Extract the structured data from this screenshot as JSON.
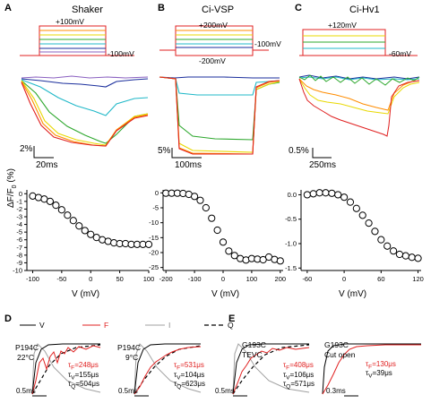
{
  "panels": {
    "A": {
      "letter": "A",
      "title": "Shaker",
      "hold_label": "+100mV",
      "rest_label": "-100mV",
      "scale_y": "2%",
      "scale_x": "20ms",
      "x_label": "V (mV)",
      "y_label": "ΔF/F",
      "x_ticks": [
        "-100",
        "-50",
        "0",
        "50",
        "100"
      ],
      "y_ticks": [
        "0",
        "-1",
        "-2",
        "-3",
        "-4",
        "-5",
        "-6",
        "-7",
        "-8",
        "-9",
        "-10"
      ]
    },
    "B": {
      "letter": "B",
      "title": "Ci-VSP",
      "hold_label": "+200mV",
      "rest_label": "-100mV",
      "low_label": "-200mV",
      "scale_y": "5%",
      "scale_x": "100ms",
      "x_label": "V (mV)",
      "x_ticks": [
        "-200",
        "-100",
        "0",
        "100",
        "200"
      ],
      "y_ticks": [
        "0",
        "-5",
        "-10",
        "-15",
        "-20",
        "-25"
      ]
    },
    "C": {
      "letter": "C",
      "title": "Ci-Hv1",
      "hold_label": "+120mV",
      "rest_label": "-60mV",
      "scale_y": "0.5%",
      "scale_x": "250ms",
      "x_label": "V (mV)",
      "x_ticks": [
        "-60",
        "0",
        "60",
        "120"
      ],
      "y_ticks": [
        "0.0",
        "-0.5",
        "-1.0",
        "-1.5"
      ]
    },
    "D": {
      "letter": "D",
      "legend": {
        "V": "V",
        "F": "F",
        "I": "I",
        "Q": "Q"
      },
      "left": {
        "mutant": "P194C",
        "temp": "22°C",
        "scale": "0.5ms",
        "tau1": "τ",
        "tau1_sub": "F",
        "tau1_val": "=248μs",
        "tau2": "τ",
        "tau2_sub": "V",
        "tau2_val": "=155μs",
        "tau3": "τ",
        "tau3_sub": "Q",
        "tau3_val": "=504μs"
      },
      "right": {
        "mutant": "P194C",
        "temp": "9°C",
        "scale": "0.5ms",
        "tau1": "τ",
        "tau1_sub": "F",
        "tau1_val": "=531μs",
        "tau2": "τ",
        "tau2_sub": "V",
        "tau2_val": "=104μs",
        "tau3": "τ",
        "tau3_sub": "Q",
        "tau3_val": "=623μs"
      }
    },
    "E": {
      "letter": "E",
      "left": {
        "mutant": "G193C",
        "method": "TEVC",
        "scale": "0.5ms",
        "tau1": "τ",
        "tau1_sub": "F",
        "tau1_val": "=408μs",
        "tau2": "τ",
        "tau2_sub": "V",
        "tau2_val": "=106μs",
        "tau3": "τ",
        "tau3_sub": "Q",
        "tau3_val": "=571μs"
      },
      "right": {
        "mutant": "G193C",
        "method": "Cut open",
        "scale": "0.3ms",
        "tau1": "τ",
        "tau1_sub": "F",
        "tau1_val": "=130μs",
        "tau2": "τ",
        "tau2_sub": "V",
        "tau2_val": "=39μs"
      }
    }
  },
  "colors": {
    "red": "#e02020",
    "orange": "#ff8c00",
    "yellow": "#e8d800",
    "green": "#2ea82e",
    "cyan": "#20b8c8",
    "blue": "#1a2e9c",
    "purple": "#8a60c0",
    "gray": "#a0a0a0"
  },
  "chart_data": [
    {
      "type": "scatter",
      "panel": "A",
      "xlabel": "V (mV)",
      "ylabel": "ΔF/F (%)",
      "xlim": [
        -110,
        100
      ],
      "ylim": [
        -10,
        0.5
      ],
      "x": [
        -100,
        -90,
        -80,
        -70,
        -60,
        -50,
        -40,
        -30,
        -20,
        -10,
        0,
        10,
        20,
        30,
        40,
        50,
        60,
        70,
        80,
        90,
        100
      ],
      "y": [
        -0.3,
        -0.5,
        -0.7,
        -1.0,
        -1.5,
        -2.1,
        -2.8,
        -3.5,
        -4.2,
        -4.8,
        -5.3,
        -5.7,
        -6.0,
        -6.2,
        -6.4,
        -6.5,
        -6.5,
        -6.6,
        -6.6,
        -6.6,
        -6.6
      ]
    },
    {
      "type": "scatter",
      "panel": "B",
      "xlabel": "V (mV)",
      "xlim": [
        -210,
        210
      ],
      "ylim": [
        -26,
        1
      ],
      "x": [
        -200,
        -180,
        -160,
        -140,
        -120,
        -100,
        -80,
        -60,
        -40,
        -20,
        0,
        20,
        40,
        60,
        80,
        100,
        120,
        140,
        160,
        180,
        200
      ],
      "y": [
        -0.1,
        -0.1,
        -0.1,
        -0.2,
        -0.5,
        -1.2,
        -2.5,
        -5.0,
        -8.5,
        -12.5,
        -16.5,
        -19.5,
        -21.0,
        -22.0,
        -22.5,
        -22.0,
        -22.2,
        -22.4,
        -21.5,
        -22.3,
        -22.8
      ]
    },
    {
      "type": "scatter",
      "panel": "C",
      "xlabel": "V (mV)",
      "xlim": [
        -70,
        125
      ],
      "ylim": [
        -1.55,
        0.1
      ],
      "x": [
        -60,
        -50,
        -40,
        -30,
        -20,
        -10,
        0,
        10,
        20,
        30,
        40,
        50,
        60,
        70,
        80,
        90,
        100,
        110,
        120
      ],
      "y": [
        0.0,
        0.02,
        0.04,
        0.04,
        0.03,
        0.0,
        -0.05,
        -0.15,
        -0.28,
        -0.42,
        -0.58,
        -0.75,
        -0.92,
        -1.05,
        -1.15,
        -1.22,
        -1.25,
        -1.28,
        -1.3
      ]
    }
  ]
}
